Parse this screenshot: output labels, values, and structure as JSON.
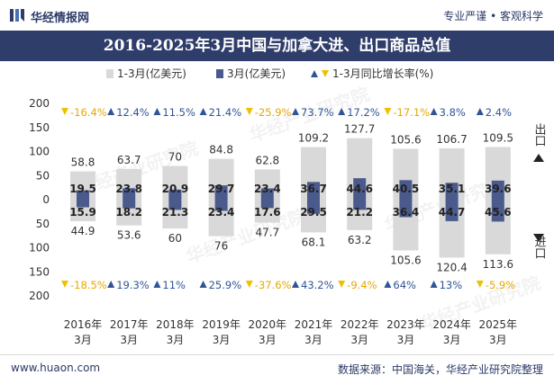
{
  "header": {
    "logo_text": "华经情报网",
    "tagline": "专业严谨 • 客观科学",
    "title": "2016-2025年3月中国与加拿大进、出口商品总值"
  },
  "footer": {
    "website": "www.huaon.com",
    "source": "数据来源：中国海关，华经产业研究院整理"
  },
  "watermark": "华经产业研究院",
  "colors": {
    "cumulative_bar": "#d9d9d9",
    "monthly_bar": "#4a5a8c",
    "up_arrow": "#2f5597",
    "down_arrow": "#f0c000",
    "title_bg": "#2f3d6b"
  },
  "chart_data": {
    "type": "bar",
    "legend": {
      "cumulative": "1-3月(亿美元)",
      "monthly": "3月(亿美元)",
      "growth": "1-3月同比增长率(%)"
    },
    "side_labels": {
      "export": "出口",
      "import": "进口"
    },
    "categories": [
      "2016年\n3月",
      "2017年\n3月",
      "2018年\n3月",
      "2019年\n3月",
      "2020年\n3月",
      "2021年\n3月",
      "2022年\n3月",
      "2023年\n3月",
      "2024年\n3月",
      "2025年\n3月"
    ],
    "export_cumulative": [
      58.8,
      63.7,
      70,
      84.8,
      62.8,
      109.2,
      127.7,
      105.6,
      106.7,
      109.5
    ],
    "export_monthly": [
      19.5,
      23.8,
      20.9,
      29.7,
      23.4,
      36.7,
      44.6,
      40.5,
      35.1,
      39.6
    ],
    "import_cumulative": [
      44.9,
      53.6,
      60,
      76,
      47.7,
      68.1,
      63.2,
      105.6,
      120.4,
      113.6
    ],
    "import_monthly": [
      15.9,
      18.2,
      21.3,
      23.4,
      17.6,
      29.5,
      21.2,
      36.4,
      44.7,
      45.6
    ],
    "export_growth": [
      "-16.4%",
      "12.4%",
      "11.5%",
      "21.4%",
      "-25.9%",
      "73.7%",
      "17.2%",
      "-17.1%",
      "3.8%",
      "2.4%"
    ],
    "import_growth": [
      "-18.5%",
      "19.3%",
      "11%",
      "25.9%",
      "-37.6%",
      "43.2%",
      "-9.4%",
      "64%",
      "13%",
      "-5.9%"
    ],
    "y_ticks": [
      "200",
      "150",
      "100",
      "50",
      "0",
      "50",
      "100",
      "150",
      "200"
    ],
    "ylim": [
      -200,
      200
    ]
  }
}
